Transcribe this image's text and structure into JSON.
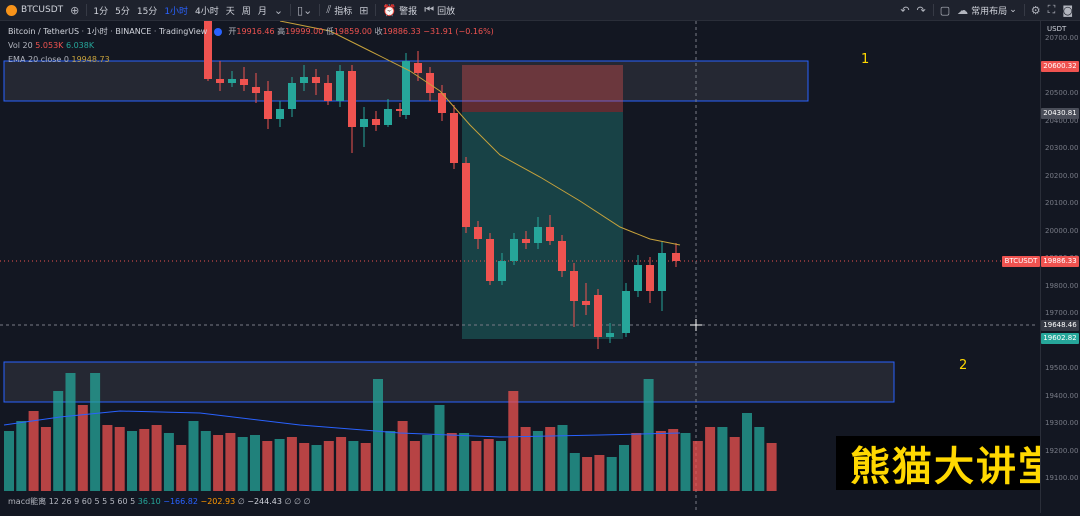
{
  "toolbar": {
    "symbol": "BTCUSDT",
    "intervals": [
      "1分",
      "5分",
      "15分",
      "1小时",
      "4小时",
      "天",
      "周",
      "月"
    ],
    "active_interval": "1小时",
    "indicators": "指标",
    "alert": "警报",
    "replay": "回放",
    "layout": "常用布局",
    "currency": "USDT"
  },
  "legend": {
    "pair": "Bitcoin / TetherUS",
    "interval": "1小时",
    "exchange": "BINANCE",
    "source": "TradingView",
    "open_label": "开",
    "open": "19916.46",
    "high_label": "高",
    "high": "19999.00",
    "low_label": "低",
    "low": "19859.00",
    "close_label": "收",
    "close": "19886.33",
    "change": "−31.91 (−0.16%)",
    "vol_label": "Vol 20",
    "vol1": "5.053K",
    "vol2": "6.038K",
    "ema_label": "EMA 20 close 0",
    "ema_value": "19948.73",
    "macd_label": "macd能离 12 26 9 60 5 5 5 60 5",
    "macd_v1": "36.10",
    "macd_v2": "−166.82",
    "macd_v3": "−202.93",
    "macd_v4": "∅",
    "macd_v5": "−244.43",
    "macd_v6": "∅ ∅ ∅"
  },
  "annotations": {
    "zone1": "1",
    "zone2": "2"
  },
  "price_axis": {
    "ticks": [
      "20700.00",
      "20600.00",
      "20500.00",
      "20400.00",
      "20300.00",
      "20200.00",
      "20100.00",
      "20000.00",
      "19900.00",
      "19800.00",
      "19700.00",
      "19600.00",
      "19500.00",
      "19400.00",
      "19300.00",
      "19200.00",
      "19100.00"
    ],
    "tag_top": "20600.32",
    "tag_entry": "20430.81",
    "tag_symbol": "BTCUSDT",
    "tag_last": "19886.33",
    "tag_cross": "19648.46",
    "tag_low": "19602.82"
  },
  "brand": "熊猫大讲堂",
  "colors": {
    "up": "#26a69a",
    "down": "#ef5350",
    "bg": "#131722",
    "ema": "#c7a23c",
    "brand": "#ffd800"
  }
}
